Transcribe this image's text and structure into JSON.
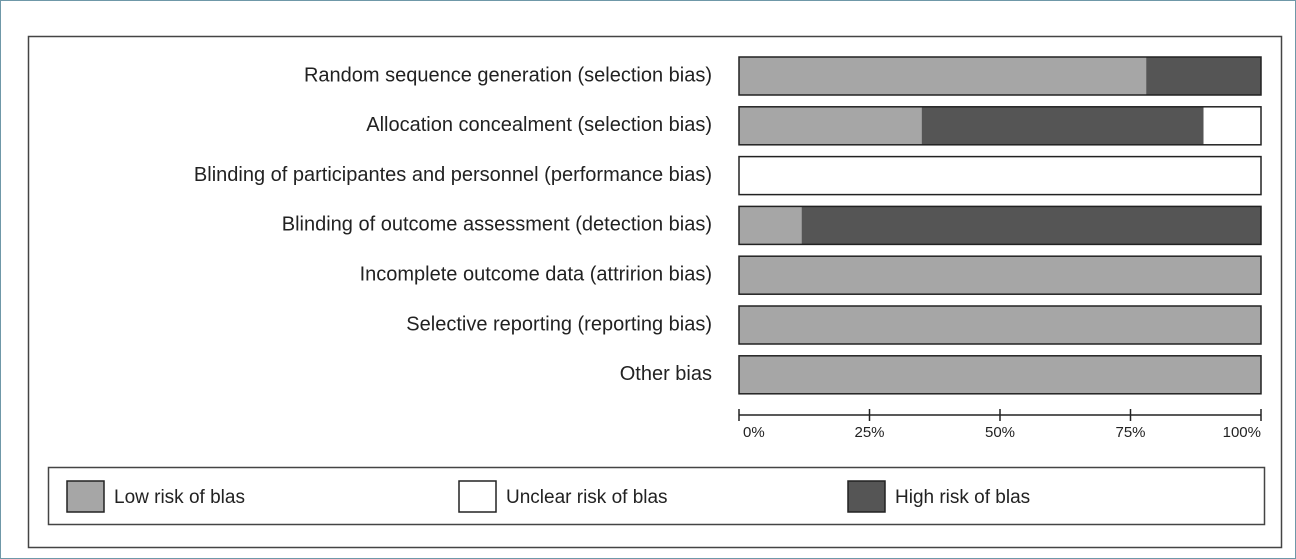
{
  "chart_data": {
    "type": "stacked-bar-horizontal",
    "categories": [
      "Random sequence generation (selection bias)",
      "Allocation concealment (selection bias)",
      "Blinding of participantes and personnel (performance bias)",
      "Blinding of outcome assessment (detection bias)",
      "Incomplete outcome data (attririon bias)",
      "Selective reporting (reporting bias)",
      "Other bias"
    ],
    "series": [
      {
        "name": "Low risk of blas",
        "color": "#a6a6a6",
        "values": [
          78,
          35,
          0,
          12,
          100,
          100,
          100
        ]
      },
      {
        "name": "Unclear risk of blas",
        "color": "#ffffff",
        "values": [
          0,
          11,
          100,
          0,
          0,
          0,
          0
        ]
      },
      {
        "name": "High risk of blas",
        "color": "#555555",
        "values": [
          22,
          54,
          0,
          88,
          0,
          0,
          0
        ]
      }
    ],
    "xlim": [
      0,
      100
    ],
    "xticks": [
      {
        "value": 0,
        "label": "0%"
      },
      {
        "value": 25,
        "label": "25%"
      },
      {
        "value": 50,
        "label": "50%"
      },
      {
        "value": 75,
        "label": "75%"
      },
      {
        "value": 100,
        "label": "100%"
      }
    ],
    "legend": "bottom"
  }
}
